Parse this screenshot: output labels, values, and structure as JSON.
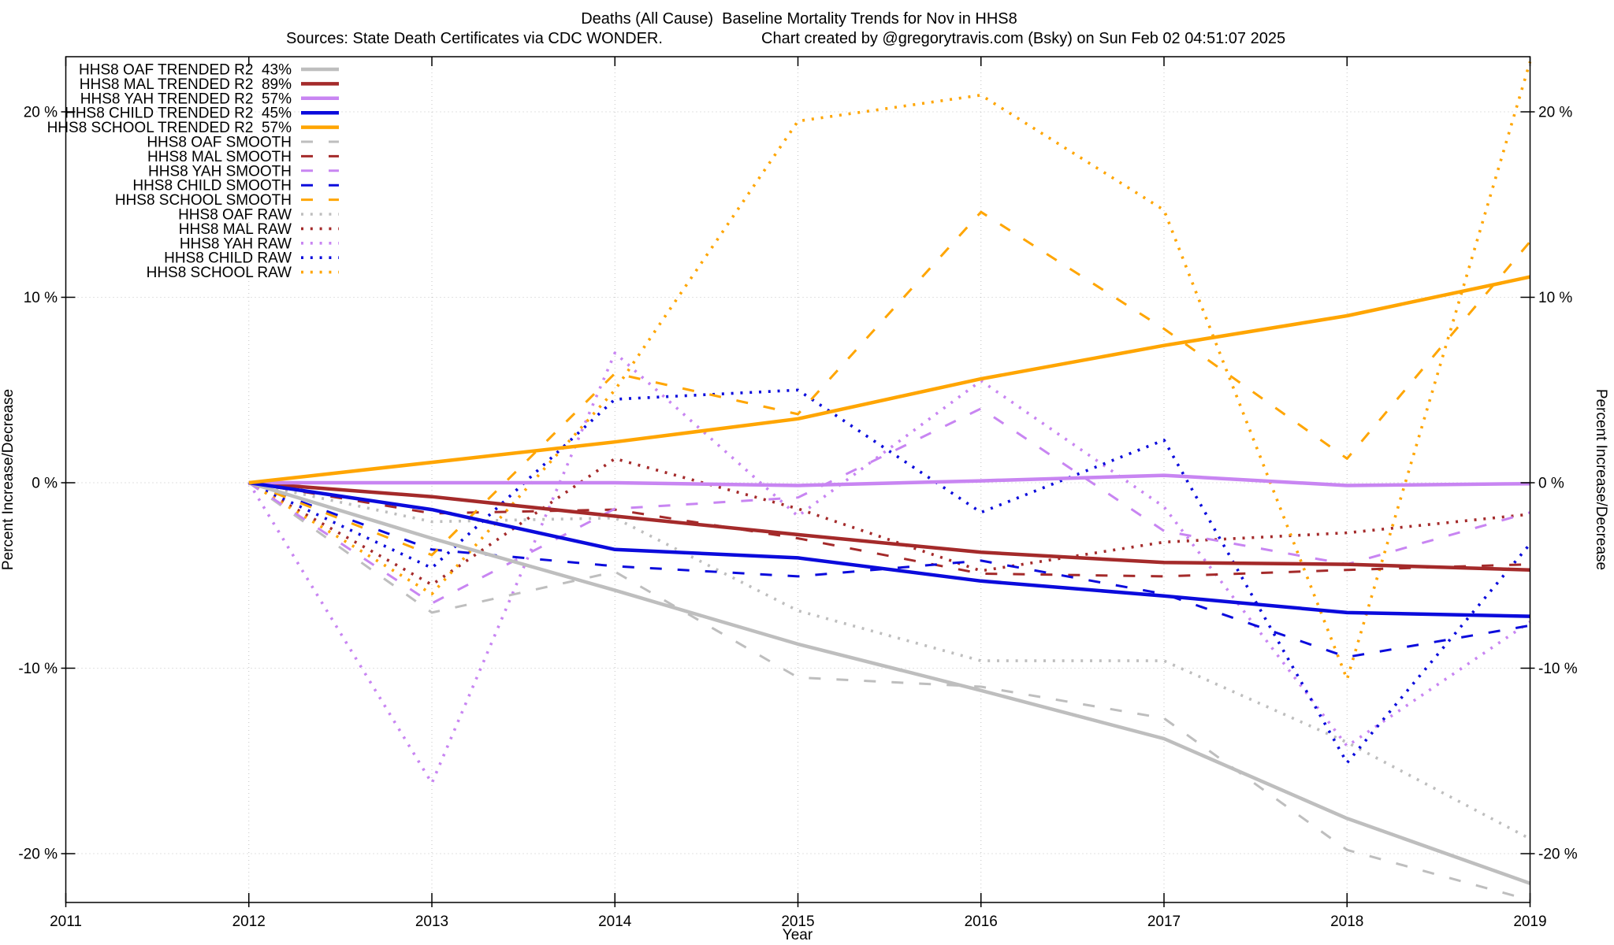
{
  "title": "Deaths (All Cause)  Baseline Mortality Trends for Nov in HHS8",
  "subtitle_sources": "Sources: State Death Certificates via CDC WONDER.",
  "subtitle_credit": "Chart created by @gregorytravis.com (Bsky) on Sun Feb 02 04:51:07 2025",
  "chart_data": {
    "type": "line",
    "xlabel": "Year",
    "ylabel_left": "Percent Increase/Decrease",
    "ylabel_right": "Percent Increase/Decrease",
    "x_range": [
      2011,
      2019
    ],
    "y_range_pct": [
      -22.6,
      23.0
    ],
    "xticks": [
      2011,
      2012,
      2013,
      2014,
      2015,
      2016,
      2017,
      2018,
      2019
    ],
    "yticks": [
      {
        "value": 20,
        "label": "20 %"
      },
      {
        "value": 10,
        "label": "10 %"
      },
      {
        "value": 0,
        "label": "0 %"
      },
      {
        "value": -10,
        "label": "-10 %"
      },
      {
        "value": -20,
        "label": "-20 %"
      }
    ],
    "grid": true,
    "legend_position": "top-left",
    "colors": {
      "gray": "#bebebe",
      "dark_red": "#a42a2a",
      "violet": "#c885f2",
      "blue": "#0b0bdc",
      "orange": "#ffa500",
      "grid": "#c4c4c4"
    },
    "years": [
      2012,
      2013,
      2014,
      2015,
      2016,
      2017,
      2018,
      2019
    ],
    "series": [
      {
        "name": "HHS8 OAF RAW",
        "legend": "HHS8 OAF RAW",
        "color": "gray",
        "style": "dotted",
        "values": [
          0,
          -2.1,
          -1.9,
          -6.9,
          -9.6,
          -9.6,
          -14.0,
          -19.2
        ]
      },
      {
        "name": "HHS8 MAL RAW",
        "legend": "HHS8 MAL RAW",
        "color": "dark_red",
        "style": "dotted",
        "values": [
          0,
          -5.5,
          1.3,
          -1.4,
          -4.75,
          -3.2,
          -2.7,
          -1.7
        ]
      },
      {
        "name": "HHS8 YAH RAW",
        "legend": "HHS8 YAH RAW",
        "color": "violet",
        "style": "dotted",
        "values": [
          0,
          -16.2,
          7.0,
          -1.8,
          5.5,
          -1.3,
          -14.2,
          -7.5
        ]
      },
      {
        "name": "HHS8 CHILD RAW",
        "legend": "HHS8 CHILD RAW",
        "color": "blue",
        "style": "dotted",
        "values": [
          0,
          -4.6,
          4.5,
          5.0,
          -1.6,
          2.3,
          -15.1,
          -3.3
        ]
      },
      {
        "name": "HHS8 SCHOOL RAW",
        "legend": "HHS8 SCHOOL RAW",
        "color": "orange",
        "style": "dotted",
        "values": [
          0,
          -6.0,
          5.0,
          19.5,
          20.9,
          14.7,
          -10.6,
          22.7
        ]
      },
      {
        "name": "HHS8 OAF SMOOTH",
        "legend": "HHS8 OAF SMOOTH",
        "color": "gray",
        "style": "dashed",
        "values": [
          0,
          -7.0,
          -4.8,
          -10.5,
          -11.0,
          -12.7,
          -19.8,
          -22.5
        ]
      },
      {
        "name": "HHS8 MAL SMOOTH",
        "legend": "HHS8 MAL SMOOTH",
        "color": "dark_red",
        "style": "dashed",
        "values": [
          0,
          -1.65,
          -1.45,
          -3.0,
          -4.9,
          -5.05,
          -4.7,
          -4.4
        ]
      },
      {
        "name": "HHS8 YAH SMOOTH",
        "legend": "HHS8 YAH SMOOTH",
        "color": "violet",
        "style": "dashed",
        "values": [
          0,
          -6.5,
          -1.4,
          -0.8,
          4.0,
          -2.6,
          -4.4,
          -1.6
        ]
      },
      {
        "name": "HHS8 CHILD SMOOTH",
        "legend": "HHS8 CHILD SMOOTH",
        "color": "blue",
        "style": "dashed",
        "values": [
          0,
          -3.6,
          -4.5,
          -5.05,
          -4.2,
          -6.0,
          -9.4,
          -7.7
        ]
      },
      {
        "name": "HHS8 SCHOOL SMOOTH",
        "legend": "HHS8 SCHOOL SMOOTH",
        "color": "orange",
        "style": "dashed",
        "values": [
          0,
          -3.9,
          5.9,
          3.7,
          14.6,
          8.3,
          1.3,
          13.0
        ]
      },
      {
        "name": "HHS8 OAF TRENDED",
        "legend": "HHS8 OAF TRENDED R2  43%",
        "color": "gray",
        "style": "solid",
        "r2": "43%",
        "values": [
          0,
          -3.0,
          -5.8,
          -8.7,
          -11.2,
          -13.8,
          -18.1,
          -21.6
        ]
      },
      {
        "name": "HHS8 MAL TRENDED",
        "legend": "HHS8 MAL TRENDED R2  89%",
        "color": "dark_red",
        "style": "solid",
        "r2": "89%",
        "values": [
          0,
          -0.75,
          -1.8,
          -2.8,
          -3.75,
          -4.3,
          -4.4,
          -4.7
        ]
      },
      {
        "name": "HHS8 YAH TRENDED",
        "legend": "HHS8 YAH TRENDED R2  57%",
        "color": "violet",
        "style": "solid",
        "r2": "57%",
        "values": [
          0,
          0.0,
          0.0,
          -0.15,
          0.1,
          0.4,
          -0.15,
          -0.05
        ]
      },
      {
        "name": "HHS8 CHILD TRENDED",
        "legend": "HHS8 CHILD TRENDED R2  45%",
        "color": "blue",
        "style": "solid",
        "r2": "45%",
        "values": [
          0,
          -1.45,
          -3.6,
          -4.05,
          -5.3,
          -6.1,
          -7.0,
          -7.2
        ]
      },
      {
        "name": "HHS8 SCHOOL TRENDED",
        "legend": "HHS8 SCHOOL TRENDED R2  57%",
        "color": "orange",
        "style": "solid",
        "r2": "57%",
        "values": [
          0,
          1.1,
          2.2,
          3.45,
          5.6,
          7.4,
          9.0,
          11.1
        ]
      }
    ],
    "legend_order": [
      "HHS8 OAF TRENDED",
      "HHS8 MAL TRENDED",
      "HHS8 YAH TRENDED",
      "HHS8 CHILD TRENDED",
      "HHS8 SCHOOL TRENDED",
      "HHS8 OAF SMOOTH",
      "HHS8 MAL SMOOTH",
      "HHS8 YAH SMOOTH",
      "HHS8 CHILD SMOOTH",
      "HHS8 SCHOOL SMOOTH",
      "HHS8 OAF RAW",
      "HHS8 MAL RAW",
      "HHS8 YAH RAW",
      "HHS8 CHILD RAW",
      "HHS8 SCHOOL RAW"
    ]
  }
}
